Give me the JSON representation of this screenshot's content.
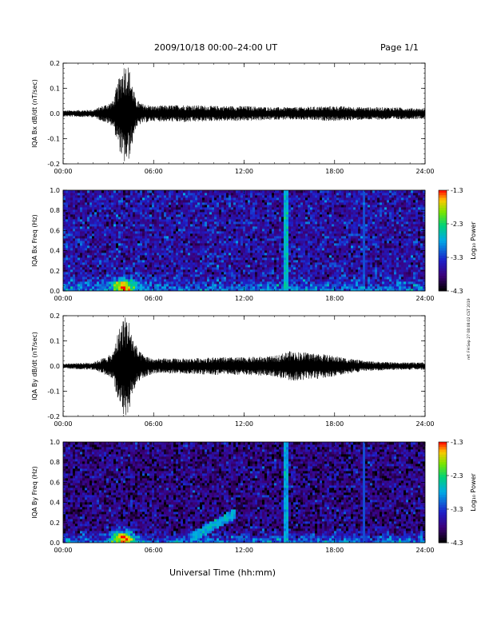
{
  "header": {
    "title": "2009/10/18  00:00–24:00 UT",
    "page": "Page 1/1"
  },
  "footer": {
    "xlabel": "Universal Time (hh:mm)",
    "side_note": "ref: FH Sep 27 08:08:02 CST 2019"
  },
  "colors": {
    "trace": "#000000",
    "spectrogram_low": "#2020a0",
    "spectrogram_high": "#ff0000"
  },
  "chart_data": [
    {
      "type": "line",
      "title": "",
      "ylabel": "IQA Bx dB/dt (nT/sec)",
      "xlabel": "",
      "ylim": [
        -0.2,
        0.2
      ],
      "xlim": [
        0,
        24
      ],
      "xticks": [
        "00:00",
        "06:00",
        "12:00",
        "18:00",
        "24:00"
      ],
      "yticks": [
        "-0.2",
        "-0.1",
        "0.0",
        "0.1",
        "0.2"
      ],
      "ytick_values": [
        -0.2,
        -0.1,
        0.0,
        0.1,
        0.2
      ],
      "envelope": {
        "hours": [
          0,
          2,
          3.3,
          3.6,
          4.0,
          4.3,
          4.5,
          4.8,
          5.2,
          6,
          8,
          10,
          12,
          14,
          15,
          17,
          18,
          20,
          22,
          24
        ],
        "amplitude": [
          0.012,
          0.015,
          0.05,
          0.12,
          0.2,
          0.2,
          0.15,
          0.06,
          0.04,
          0.03,
          0.035,
          0.03,
          0.03,
          0.025,
          0.025,
          0.028,
          0.03,
          0.025,
          0.025,
          0.02
        ]
      }
    },
    {
      "type": "heatmap",
      "title": "",
      "ylabel": "IQA Bx Freq (Hz)",
      "xlabel": "",
      "ylim": [
        0.0,
        1.0
      ],
      "xlim": [
        0,
        24
      ],
      "xticks": [
        "00:00",
        "06:00",
        "12:00",
        "18:00",
        "24:00"
      ],
      "yticks": [
        "0.0",
        "0.2",
        "0.4",
        "0.6",
        "0.8",
        "1.0"
      ],
      "ytick_values": [
        0.0,
        0.2,
        0.4,
        0.6,
        0.8,
        1.0
      ],
      "colorbar": {
        "label": "Log₁₀ Power",
        "ticks": [
          "-1.3",
          "-2.3",
          "-3.3",
          "-4.3"
        ],
        "tick_values": [
          -1.3,
          -2.3,
          -3.3,
          -4.3
        ],
        "range": [
          -4.3,
          -1.3
        ]
      },
      "features": {
        "background_level": -3.6,
        "low_freq_band": {
          "max_freq": 0.15,
          "level": -3.0
        },
        "hotspot": {
          "hour": 4.0,
          "freq": 0.05,
          "level": -1.8
        },
        "bright_band": {
          "hour_start": 14.6,
          "hour_end": 15.0,
          "level": -2.7
        },
        "faint_line": {
          "hour": 20.0,
          "level": -3.2
        }
      }
    },
    {
      "type": "line",
      "title": "",
      "ylabel": "IQA By dB/dt (nT/sec)",
      "xlabel": "",
      "ylim": [
        -0.2,
        0.2
      ],
      "xlim": [
        0,
        24
      ],
      "xticks": [
        "00:00",
        "06:00",
        "12:00",
        "18:00",
        "24:00"
      ],
      "yticks": [
        "-0.2",
        "-0.1",
        "0.0",
        "0.1",
        "0.2"
      ],
      "ytick_values": [
        -0.2,
        -0.1,
        0.0,
        0.1,
        0.2
      ],
      "envelope": {
        "hours": [
          0,
          2,
          3.3,
          3.6,
          4.0,
          4.3,
          4.6,
          5.0,
          5.5,
          6,
          8,
          10,
          12,
          14,
          15,
          16,
          17,
          18,
          20,
          22,
          24
        ],
        "amplitude": [
          0.01,
          0.015,
          0.05,
          0.13,
          0.2,
          0.2,
          0.12,
          0.06,
          0.04,
          0.03,
          0.03,
          0.035,
          0.035,
          0.04,
          0.06,
          0.055,
          0.05,
          0.04,
          0.02,
          0.015,
          0.015
        ]
      }
    },
    {
      "type": "heatmap",
      "title": "",
      "ylabel": "IQA By Freq (Hz)",
      "xlabel": "",
      "ylim": [
        0.0,
        1.0
      ],
      "xlim": [
        0,
        24
      ],
      "xticks": [
        "00:00",
        "06:00",
        "12:00",
        "18:00",
        "24:00"
      ],
      "yticks": [
        "0.0",
        "0.2",
        "0.4",
        "0.6",
        "0.8",
        "1.0"
      ],
      "ytick_values": [
        0.0,
        0.2,
        0.4,
        0.6,
        0.8,
        1.0
      ],
      "colorbar": {
        "label": "Log₁₀ Power",
        "ticks": [
          "-1.3",
          "-2.3",
          "-3.3",
          "-4.3"
        ],
        "tick_values": [
          -1.3,
          -2.3,
          -3.3,
          -4.3
        ],
        "range": [
          -4.3,
          -1.3
        ]
      },
      "features": {
        "background_level": -3.8,
        "low_freq_band": {
          "max_freq": 0.12,
          "level": -3.0
        },
        "hotspot": {
          "hour": 4.0,
          "freq": 0.05,
          "level": -1.8
        },
        "rising_arc": {
          "hour_start": 8.5,
          "hour_end": 11.5,
          "freq_start": 0.05,
          "freq_end": 0.3,
          "level": -2.8
        },
        "bright_band": {
          "hour_start": 14.6,
          "hour_end": 15.0,
          "level": -2.8
        },
        "faint_line": {
          "hour": 20.0,
          "level": -3.2
        }
      }
    }
  ]
}
